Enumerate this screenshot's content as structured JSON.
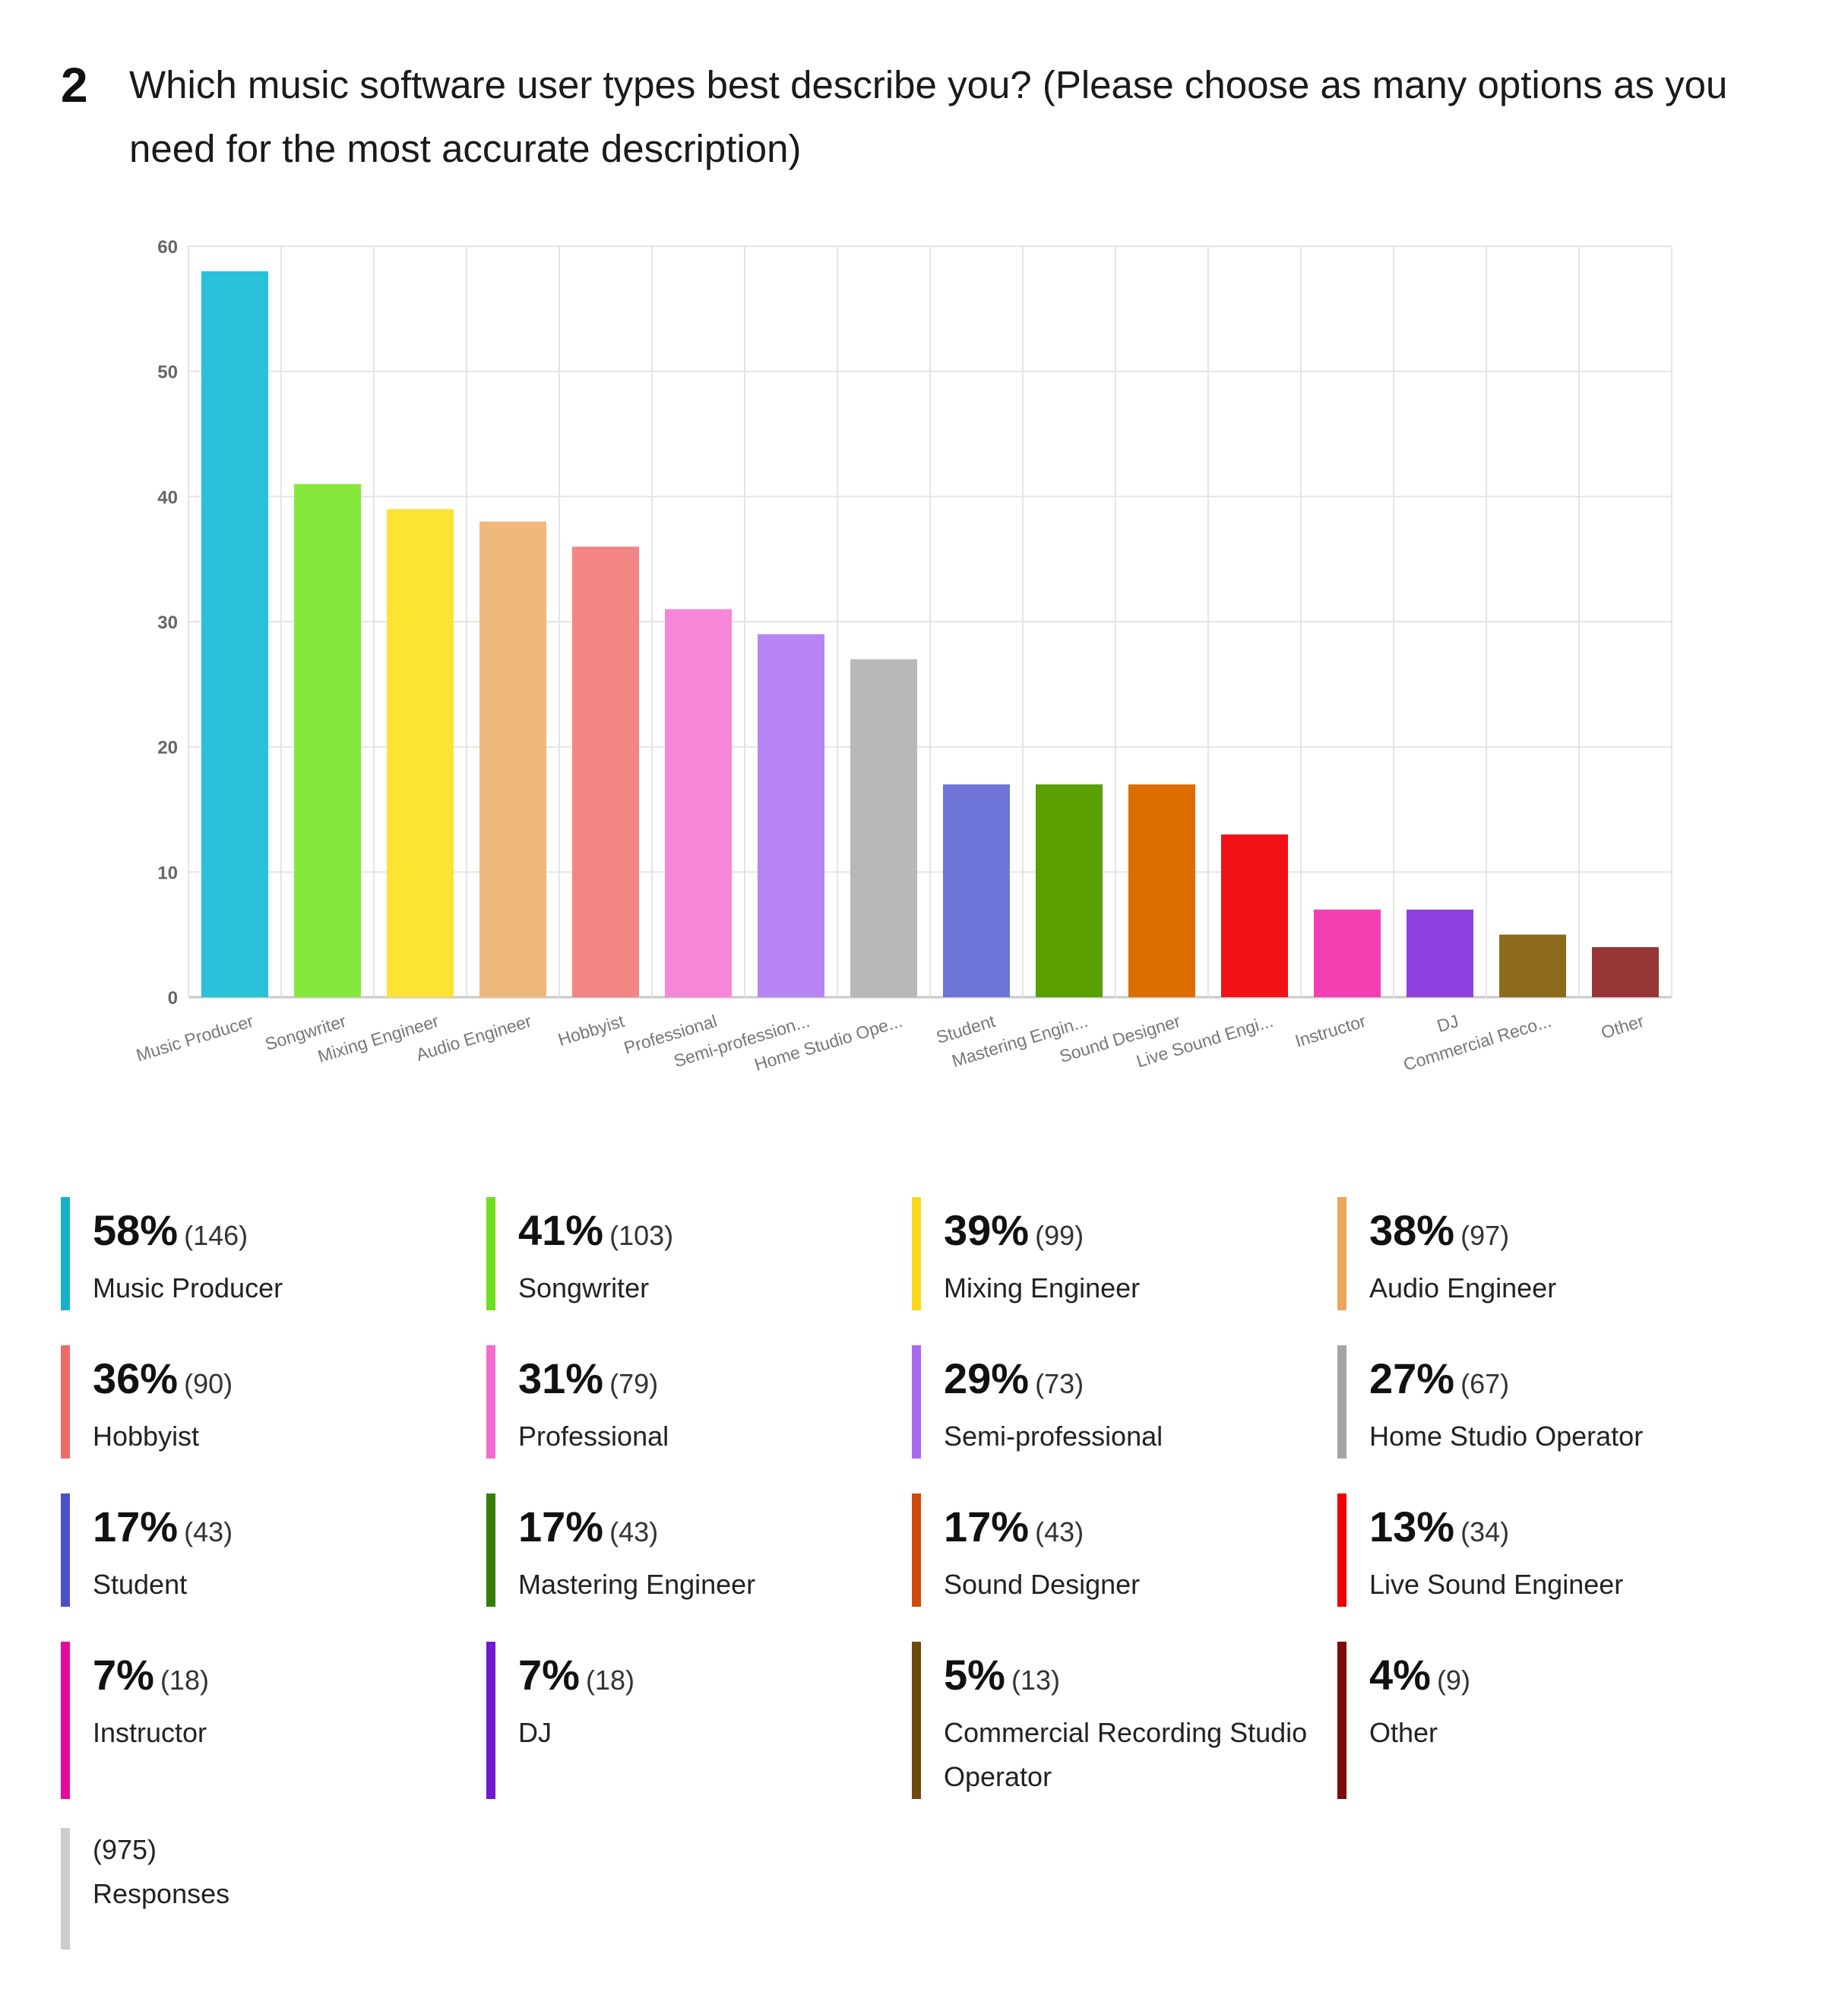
{
  "question": {
    "number": "2",
    "text": "Which music software user types best describe you? (Please choose as many options as you need for the most accurate description)"
  },
  "chart_data": {
    "type": "bar",
    "categories": [
      "Music Producer",
      "Songwriter",
      "Mixing Engineer",
      "Audio Engineer",
      "Hobbyist",
      "Professional",
      "Semi-profession...",
      "Home Studio Ope...",
      "Student",
      "Mastering Engin...",
      "Sound Designer",
      "Live Sound Engi...",
      "Instructor",
      "DJ",
      "Commercial Reco...",
      "Other"
    ],
    "values": [
      58,
      41,
      39,
      38,
      36,
      31,
      29,
      27,
      17,
      17,
      17,
      13,
      7,
      7,
      5,
      4
    ],
    "ylim": [
      0,
      60
    ],
    "yticks": [
      0,
      10,
      20,
      30,
      40,
      50,
      60
    ],
    "grid": true,
    "colors": [
      "#29c1d8",
      "#86e83c",
      "#fce334",
      "#efb97c",
      "#f38584",
      "#f586d8",
      "#b784f4",
      "#b8b8b8",
      "#6e74d8",
      "#5aa000",
      "#de6d00",
      "#f21116",
      "#f43fb2",
      "#8d40de",
      "#8c6a1c",
      "#973636"
    ]
  },
  "legend": [
    {
      "pct": "58%",
      "count": "(146)",
      "label": "Music Producer",
      "color": "#14b1c8"
    },
    {
      "pct": "41%",
      "count": "(103)",
      "label": "Songwriter",
      "color": "#6ede1f"
    },
    {
      "pct": "39%",
      "count": "(99)",
      "label": "Mixing Engineer",
      "color": "#f7d91a"
    },
    {
      "pct": "38%",
      "count": "(97)",
      "label": "Audio Engineer",
      "color": "#eda45d"
    },
    {
      "pct": "36%",
      "count": "(90)",
      "label": "Hobbyist",
      "color": "#ef6a6a"
    },
    {
      "pct": "31%",
      "count": "(79)",
      "label": "Professional",
      "color": "#f06dcf"
    },
    {
      "pct": "29%",
      "count": "(73)",
      "label": "Semi-professional",
      "color": "#a868f0"
    },
    {
      "pct": "27%",
      "count": "(67)",
      "label": "Home Studio Operator",
      "color": "#a4a4a4"
    },
    {
      "pct": "17%",
      "count": "(43)",
      "label": "Student",
      "color": "#4a51c8"
    },
    {
      "pct": "17%",
      "count": "(43)",
      "label": "Mastering Engineer",
      "color": "#347f08"
    },
    {
      "pct": "17%",
      "count": "(43)",
      "label": "Sound Designer",
      "color": "#cf4a08"
    },
    {
      "pct": "13%",
      "count": "(34)",
      "label": "Live Sound Engineer",
      "color": "#ee0000"
    },
    {
      "pct": "7%",
      "count": "(18)",
      "label": "Instructor",
      "color": "#e4099a"
    },
    {
      "pct": "7%",
      "count": "(18)",
      "label": "DJ",
      "color": "#6f19d2"
    },
    {
      "pct": "5%",
      "count": "(13)",
      "label": "Commercial Recording Studio Operator",
      "color": "#6f4a0d"
    },
    {
      "pct": "4%",
      "count": "(9)",
      "label": "Other",
      "color": "#7c0c0c"
    }
  ],
  "responses": {
    "count": "(975)",
    "label": "Responses",
    "color": "#cccccc"
  }
}
